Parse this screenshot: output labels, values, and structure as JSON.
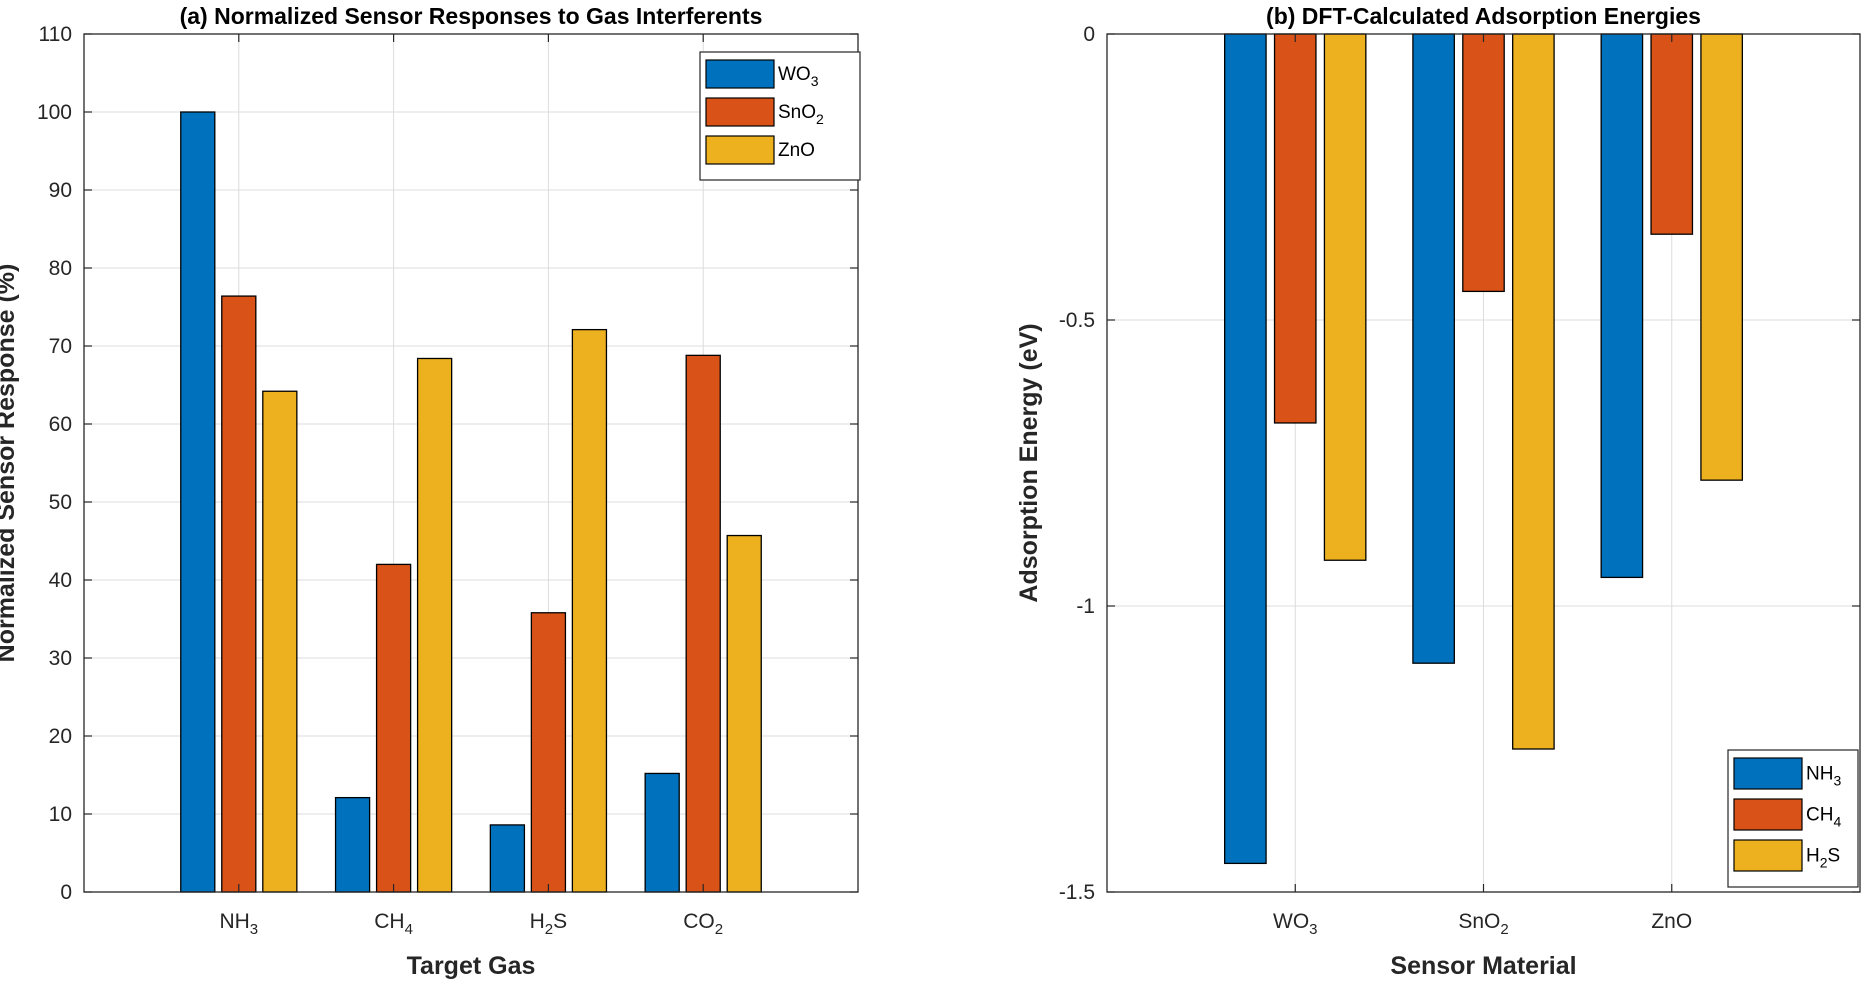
{
  "colors": {
    "series": [
      "#0072BD",
      "#D95319",
      "#EDB120"
    ],
    "grid": "#dcdcdc",
    "axis": "#262626"
  },
  "chart_data": [
    {
      "type": "bar",
      "title": "(a) Normalized Sensor Responses to Gas Interferents",
      "xlabel": "Target Gas",
      "ylabel": "Normalized Sensor Response (%)",
      "categories": [
        {
          "main": "NH",
          "sub": "3",
          "after": ""
        },
        {
          "main": "CH",
          "sub": "4",
          "after": ""
        },
        {
          "main": "H",
          "sub": "2",
          "after": "S"
        },
        {
          "main": "CO",
          "sub": "2",
          "after": ""
        }
      ],
      "series": [
        {
          "name": {
            "main": "WO",
            "sub": "3",
            "after": ""
          },
          "values": [
            100,
            12.1,
            8.6,
            15.2
          ]
        },
        {
          "name": {
            "main": "SnO",
            "sub": "2",
            "after": ""
          },
          "values": [
            76.4,
            42.0,
            35.8,
            68.8
          ]
        },
        {
          "name": {
            "main": "ZnO",
            "sub": "",
            "after": ""
          },
          "values": [
            64.2,
            68.4,
            72.1,
            45.7
          ]
        }
      ],
      "ylim": [
        0,
        110
      ],
      "yticks": [
        0,
        10,
        20,
        30,
        40,
        50,
        60,
        70,
        80,
        90,
        100,
        110
      ],
      "ytick_labels": [
        "0",
        "10",
        "20",
        "30",
        "40",
        "50",
        "60",
        "70",
        "80",
        "90",
        "100",
        "110"
      ],
      "grid": true,
      "legend": "top-right"
    },
    {
      "type": "bar",
      "title": "(b) DFT-Calculated Adsorption Energies",
      "xlabel": "Sensor Material",
      "ylabel": "Adsorption Energy (eV)",
      "categories": [
        {
          "main": "WO",
          "sub": "3",
          "after": ""
        },
        {
          "main": "SnO",
          "sub": "2",
          "after": ""
        },
        {
          "main": "ZnO",
          "sub": "",
          "after": ""
        }
      ],
      "series": [
        {
          "name": {
            "main": "NH",
            "sub": "3",
            "after": ""
          },
          "values": [
            -1.45,
            -1.1,
            -0.95
          ]
        },
        {
          "name": {
            "main": "CH",
            "sub": "4",
            "after": ""
          },
          "values": [
            -0.68,
            -0.45,
            -0.35
          ]
        },
        {
          "name": {
            "main": "H",
            "sub": "2",
            "after": "S"
          },
          "values": [
            -0.92,
            -1.25,
            -0.78
          ]
        }
      ],
      "ylim": [
        -1.5,
        0
      ],
      "yticks": [
        -1.5,
        -1,
        -0.5,
        0
      ],
      "ytick_labels": [
        "-1.5",
        "-1",
        "-0.5",
        "0"
      ],
      "grid": true,
      "legend": "bottom-right"
    }
  ]
}
